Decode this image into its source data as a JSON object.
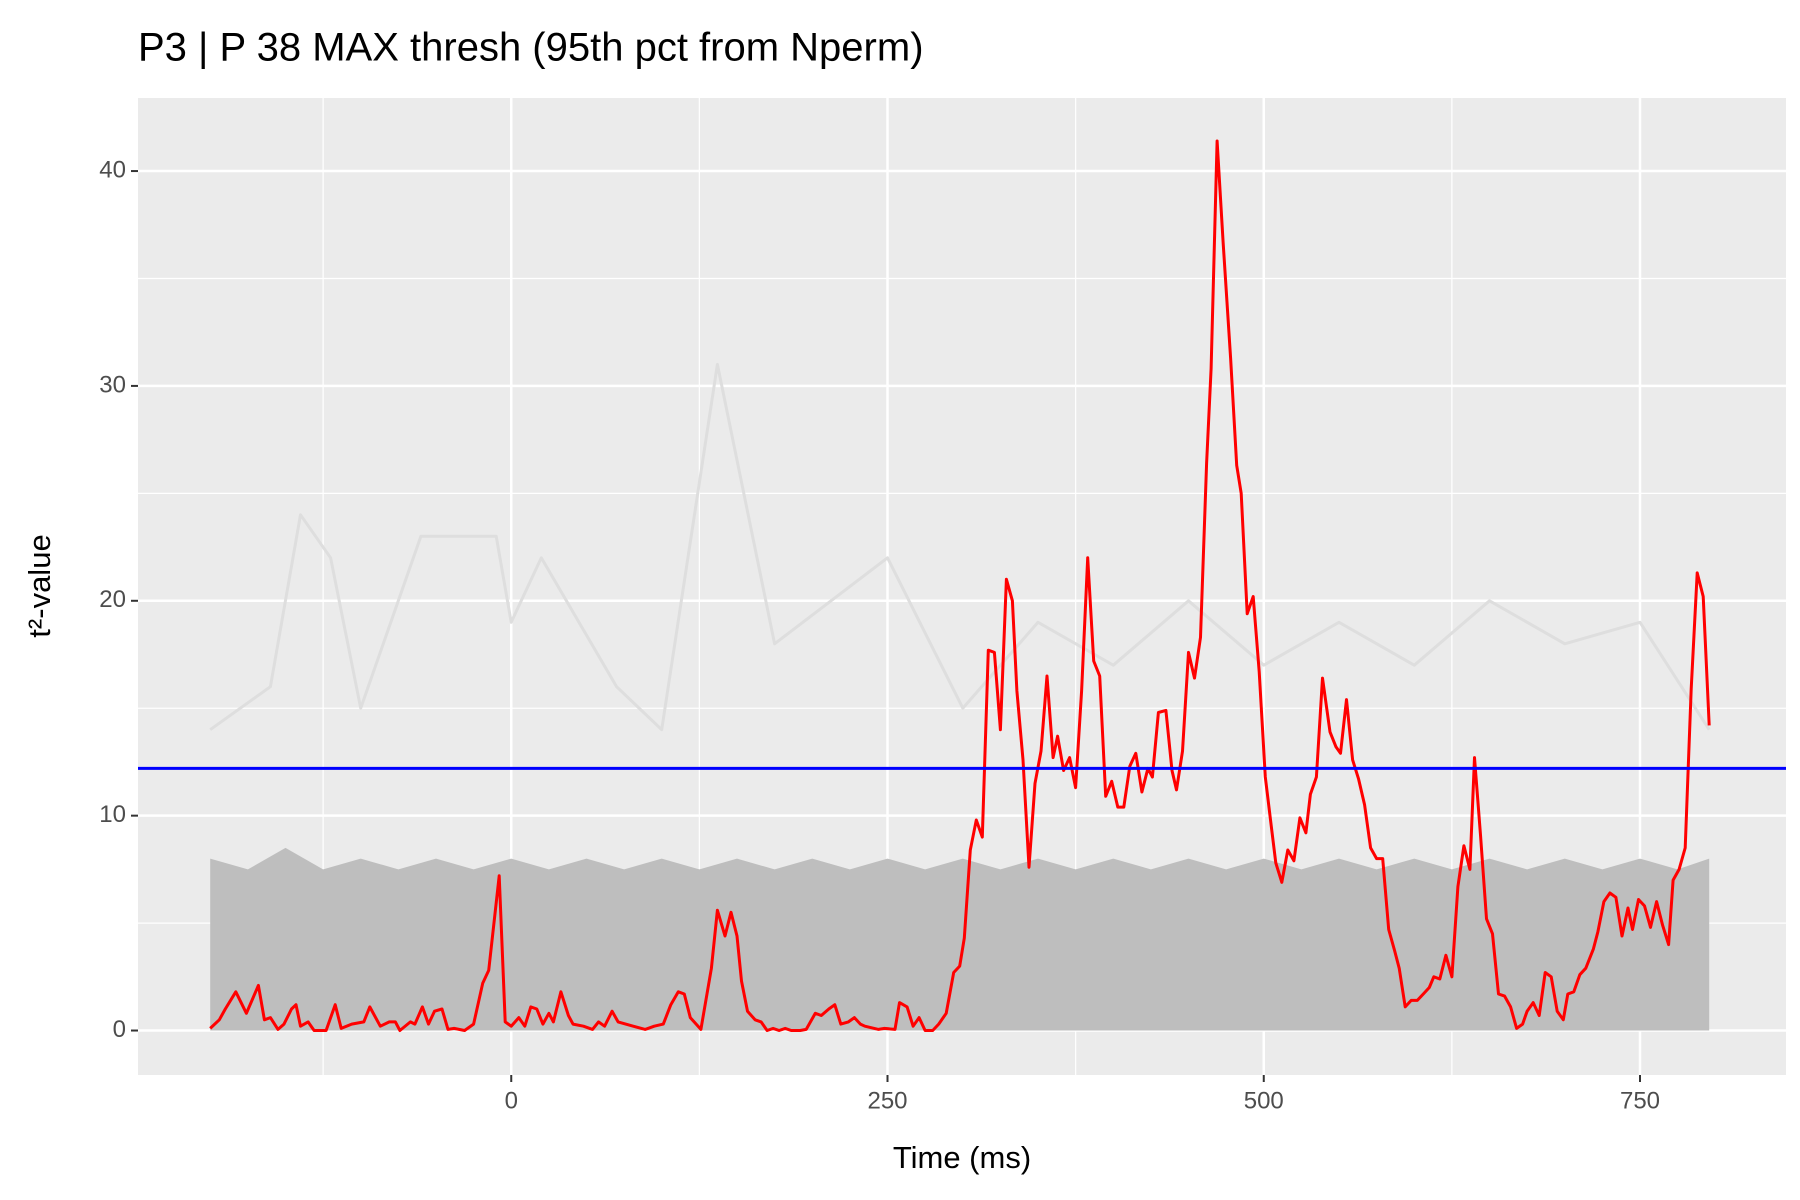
{
  "chart_data": {
    "type": "line",
    "title": "P3 | P 38 MAX thresh (95th pct from Nperm)",
    "x_label": "Time (ms)",
    "y_label": "t²-value",
    "xlim": [
      -248,
      847
    ],
    "ylim": [
      -2.07,
      43.4
    ],
    "xticks": [
      0,
      250,
      500,
      750
    ],
    "yticks": [
      0,
      10,
      20,
      30,
      40
    ],
    "xminor": [
      -125,
      125,
      375,
      625
    ],
    "yminor": [
      5,
      15,
      25,
      35
    ],
    "grid": true,
    "threshold": {
      "value": 12.2,
      "color": "#0000ff"
    },
    "series": [
      {
        "color": "#dedede",
        "area": false,
        "x": [
          -200,
          -160,
          -140,
          -120,
          -100,
          -60,
          -10,
          0,
          20,
          70,
          100,
          137,
          175,
          250,
          300,
          350,
          400,
          450,
          500,
          550,
          600,
          650,
          700,
          750,
          796
        ],
        "values": [
          14,
          16,
          24,
          22,
          15,
          23,
          23,
          19,
          22,
          16,
          14,
          31,
          18,
          22,
          15,
          19,
          17,
          20,
          17,
          19,
          17,
          20,
          18,
          19,
          14
        ]
      },
      {
        "color": "#bebebe",
        "area": true,
        "x": [
          -200,
          -175,
          -150,
          -125,
          -100,
          -75,
          -50,
          -25,
          0,
          25,
          50,
          75,
          100,
          125,
          150,
          175,
          200,
          225,
          250,
          275,
          300,
          325,
          350,
          375,
          400,
          425,
          450,
          475,
          500,
          525,
          550,
          575,
          600,
          625,
          650,
          675,
          700,
          725,
          750,
          775,
          796
        ],
        "values": [
          8,
          7.5,
          8.5,
          7.5,
          8,
          7.5,
          8,
          7.5,
          8,
          7.5,
          8,
          7.5,
          8,
          7.5,
          8,
          7.5,
          8,
          7.5,
          8,
          7.5,
          8,
          7.5,
          8,
          7.5,
          8,
          7.5,
          8,
          7.5,
          8,
          7.5,
          8,
          7.5,
          8,
          7.5,
          8,
          7.5,
          8,
          7.5,
          8,
          7.5,
          8
        ]
      },
      {
        "color": "#ff0000",
        "area": false,
        "x": [
          -200,
          -194,
          -190,
          -183,
          -176,
          -168,
          -164,
          -160,
          -155,
          -151,
          -146,
          -143,
          -140,
          -135,
          -131,
          -123,
          -117,
          -113,
          -106,
          -98,
          -94,
          -87,
          -81,
          -77,
          -74,
          -67,
          -64,
          -59,
          -55,
          -51,
          -46,
          -42,
          -38,
          -31,
          -25,
          -19,
          -15,
          -8,
          -4,
          0,
          5,
          9,
          13,
          17,
          21,
          25,
          28,
          33,
          38,
          41,
          48,
          54,
          58,
          62,
          67,
          71,
          81,
          89,
          95,
          101,
          106,
          111,
          115,
          119,
          126,
          133,
          137,
          142,
          146,
          150,
          153,
          157,
          162,
          166,
          170,
          174,
          178,
          182,
          186,
          192,
          196,
          202,
          206,
          211,
          215,
          219,
          224,
          228,
          232,
          235,
          244,
          248,
          255,
          258,
          263,
          267,
          271,
          275,
          280,
          284,
          289,
          294,
          298,
          301,
          305,
          309,
          313,
          317,
          321,
          325,
          329,
          333,
          336,
          340,
          344,
          348,
          352,
          356,
          360,
          363,
          367,
          371,
          375,
          379,
          383,
          387,
          391,
          395,
          399,
          403,
          407,
          411,
          415,
          419,
          423,
          426,
          430,
          435,
          439,
          442,
          446,
          450,
          454,
          458,
          462,
          465,
          469,
          473,
          478,
          482,
          485,
          489,
          493,
          497,
          501,
          505,
          508,
          512,
          516,
          520,
          524,
          528,
          531,
          535,
          539,
          544,
          548,
          551,
          555,
          559,
          563,
          567,
          571,
          575,
          579,
          583,
          587,
          590,
          594,
          598,
          602,
          606,
          610,
          613,
          617,
          621,
          625,
          629,
          633,
          637,
          640,
          644,
          648,
          652,
          656,
          660,
          664,
          668,
          672,
          675,
          679,
          683,
          687,
          691,
          695,
          699,
          702,
          706,
          710,
          714,
          719,
          722,
          726,
          730,
          734,
          738,
          742,
          745,
          749,
          753,
          757,
          761,
          765,
          769,
          772,
          776,
          780,
          784,
          788,
          792,
          796
        ],
        "values": [
          0.1,
          0.5,
          1.0,
          1.8,
          0.8,
          2.1,
          0.5,
          0.6,
          0.05,
          0.3,
          1.0,
          1.2,
          0.2,
          0.4,
          0,
          0,
          1.2,
          0.1,
          0.3,
          0.4,
          1.1,
          0.2,
          0.4,
          0.4,
          0,
          0.4,
          0.3,
          1.1,
          0.3,
          0.9,
          1.0,
          0.05,
          0.1,
          0,
          0.3,
          2.2,
          2.8,
          7.2,
          0.4,
          0.2,
          0.6,
          0.2,
          1.1,
          1.0,
          0.3,
          0.8,
          0.4,
          1.8,
          0.7,
          0.3,
          0.2,
          0.05,
          0.4,
          0.2,
          0.9,
          0.4,
          0.2,
          0.05,
          0.2,
          0.3,
          1.2,
          1.8,
          1.7,
          0.6,
          0.05,
          2.9,
          5.6,
          4.4,
          5.5,
          4.4,
          2.3,
          0.9,
          0.5,
          0.4,
          0,
          0.1,
          0,
          0.1,
          0,
          0,
          0.05,
          0.8,
          0.7,
          1.0,
          1.2,
          0.3,
          0.4,
          0.6,
          0.3,
          0.2,
          0.05,
          0.1,
          0.05,
          1.3,
          1.1,
          0.2,
          0.6,
          0,
          0,
          0.3,
          0.8,
          2.7,
          3.0,
          4.3,
          8.4,
          9.8,
          9.0,
          17.7,
          17.6,
          14.0,
          21.0,
          20.0,
          15.8,
          12.6,
          7.6,
          11.5,
          13.0,
          16.5,
          12.7,
          13.7,
          12.1,
          12.7,
          11.3,
          15.8,
          22.0,
          17.2,
          16.5,
          10.9,
          11.6,
          10.4,
          10.4,
          12.3,
          12.9,
          11.1,
          12.2,
          11.8,
          14.8,
          14.9,
          12.1,
          11.2,
          13.0,
          17.6,
          16.4,
          18.3,
          26.4,
          30.8,
          41.4,
          36.7,
          31.3,
          26.3,
          25.0,
          19.4,
          20.2,
          16.7,
          11.8,
          9.5,
          7.8,
          6.9,
          8.4,
          7.9,
          9.9,
          9.2,
          11.0,
          11.8,
          16.4,
          13.9,
          13.2,
          12.9,
          15.4,
          12.6,
          11.7,
          10.5,
          8.5,
          8.0,
          8.0,
          4.7,
          3.7,
          2.9,
          1.1,
          1.4,
          1.4,
          1.7,
          2.0,
          2.5,
          2.4,
          3.5,
          2.5,
          6.7,
          8.6,
          7.5,
          12.7,
          9.1,
          5.2,
          4.5,
          1.7,
          1.6,
          1.1,
          0.1,
          0.3,
          0.9,
          1.3,
          0.7,
          2.7,
          2.5,
          0.9,
          0.5,
          1.7,
          1.8,
          2.6,
          2.9,
          3.8,
          4.6,
          6.0,
          6.4,
          6.2,
          4.4,
          5.7,
          4.7,
          6.1,
          5.8,
          4.8,
          6.0,
          4.9,
          4.0,
          7.0,
          7.5,
          8.5,
          15.9,
          21.3,
          20.2,
          14.2
        ]
      }
    ]
  }
}
